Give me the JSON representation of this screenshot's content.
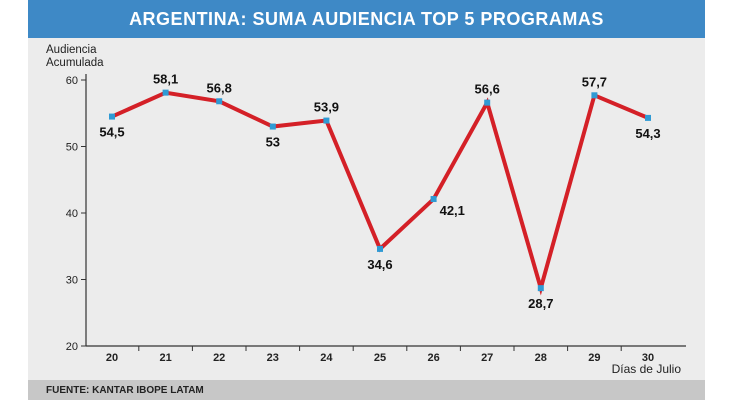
{
  "chart_data": {
    "type": "line",
    "title": "ARGENTINA: SUMA AUDIENCIA TOP 5 PROGRAMAS",
    "ylabel": "Audiencia\nAcumulada",
    "xlabel": "Días de Julio",
    "source": "FUENTE: KANTAR IBOPE LATAM",
    "categories": [
      "20",
      "21",
      "22",
      "23",
      "24",
      "25",
      "26",
      "27",
      "28",
      "29",
      "30"
    ],
    "series": [
      {
        "values": [
          54.5,
          58.1,
          56.8,
          53,
          53.9,
          34.6,
          42.1,
          56.6,
          28.7,
          57.7,
          54.3
        ],
        "labels": [
          "54,5",
          "58,1",
          "56,8",
          "53",
          "53,9",
          "34,6",
          "42,1",
          "56,6",
          "28,7",
          "57,7",
          "54,3"
        ],
        "label_positions": [
          "below",
          "above",
          "above",
          "below",
          "above",
          "below",
          "right",
          "above",
          "below",
          "above",
          "below"
        ]
      }
    ],
    "ylim": [
      20,
      60
    ],
    "yticks": [
      "20",
      "30",
      "40",
      "50",
      "60"
    ],
    "grid": false,
    "line_color": "#d42027",
    "marker_color": "#2f9ad4",
    "title_bar_color": "#3e89c6"
  }
}
